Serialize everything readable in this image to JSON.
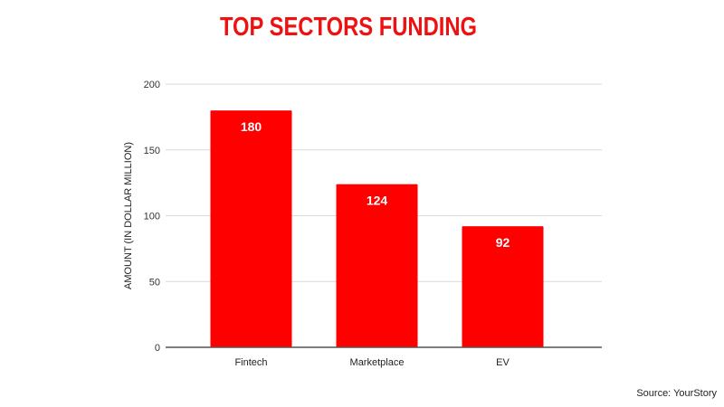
{
  "chart_data": {
    "type": "bar",
    "title": "TOP SECTORS FUNDING",
    "xlabel": "",
    "ylabel": "AMOUNT (IN DOLLAR MILLION)",
    "categories": [
      "Fintech",
      "Marketplace",
      "EV"
    ],
    "values": [
      180,
      124,
      92
    ],
    "data_labels": [
      "180",
      "124",
      "92"
    ],
    "ylim": [
      0,
      200
    ],
    "yticks": [
      "0",
      "50",
      "100",
      "150",
      "200"
    ],
    "grid": true,
    "legend": "none",
    "bar_color": "#ff0000",
    "title_color": "#ee1111"
  },
  "source": "Source: YourStory"
}
